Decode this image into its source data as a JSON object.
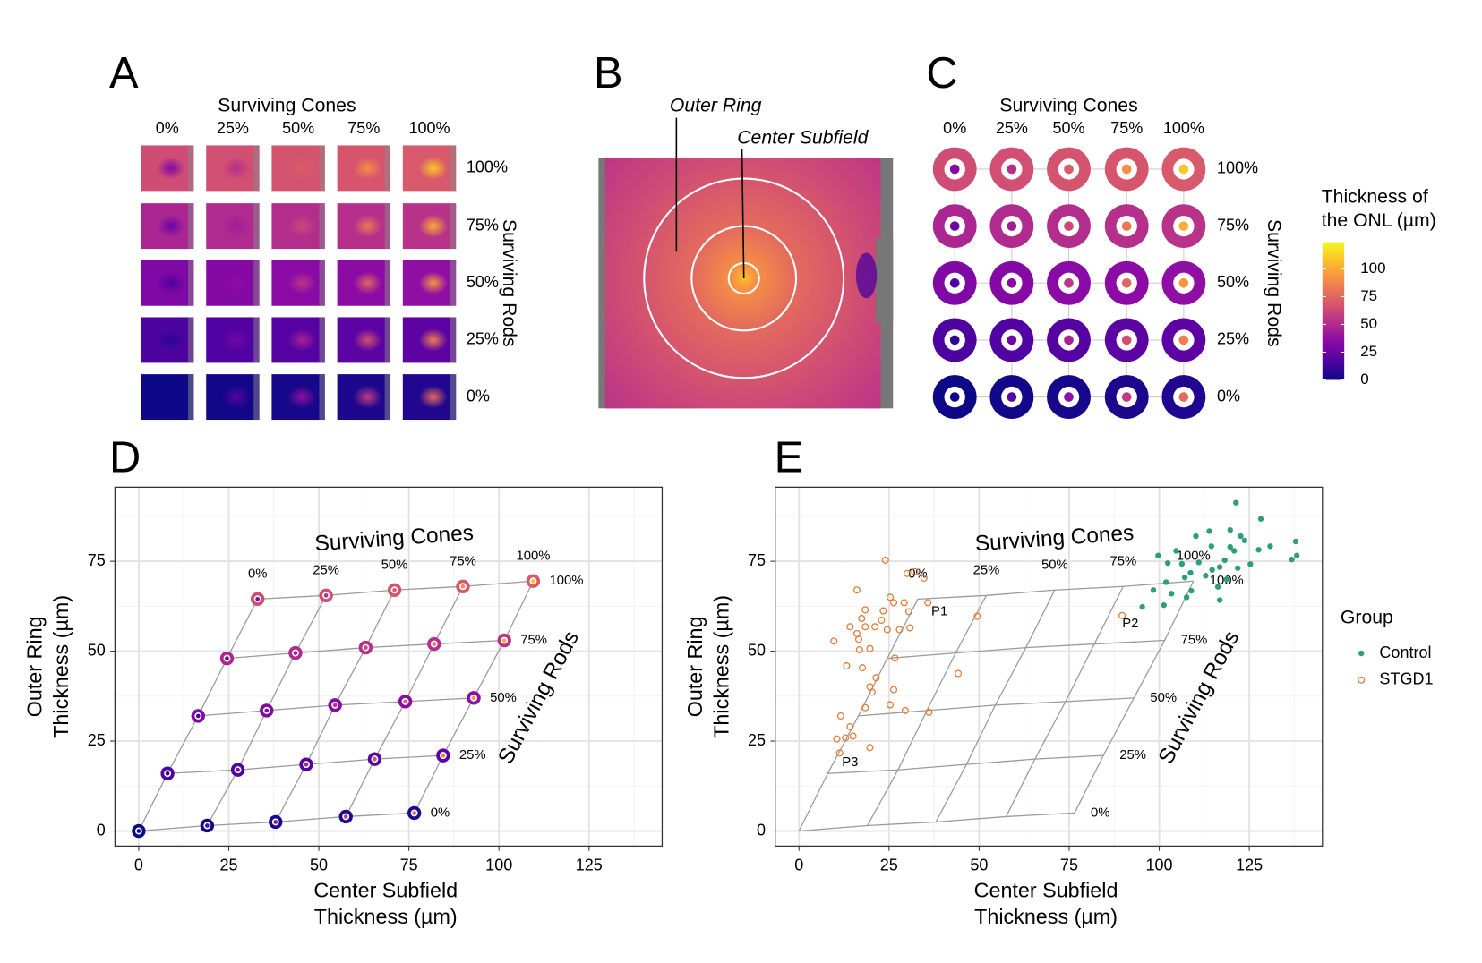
{
  "chart_data": [
    {
      "type": "thumbnail-grid",
      "panel": "A",
      "col_title": "Surviving Cones",
      "col_labels": [
        "0%",
        "25%",
        "50%",
        "75%",
        "100%"
      ],
      "row_title": "Surviving Rods",
      "row_labels": [
        "100%",
        "75%",
        "50%",
        "25%",
        "0%"
      ]
    },
    {
      "type": "heatmap",
      "panel": "B",
      "annotations": [
        "Outer Ring",
        "Center Subfield"
      ]
    },
    {
      "type": "ring-grid",
      "panel": "C",
      "col_title": "Surviving Cones",
      "col_labels": [
        "0%",
        "25%",
        "50%",
        "75%",
        "100%"
      ],
      "row_title": "Surviving Rods",
      "row_labels": [
        "100%",
        "75%",
        "50%",
        "25%",
        "0%"
      ],
      "colorbar": {
        "title": [
          "Thickness of",
          "the ONL (µm)"
        ],
        "lim": [
          0,
          124
        ],
        "ticks": [
          0,
          25,
          50,
          75,
          100
        ],
        "colormap": "plasma"
      }
    },
    {
      "type": "scatter-grid",
      "panel": "D",
      "cones_title": "Surviving Cones",
      "rods_title": "Surviving Rods",
      "cone_labels": [
        "0%",
        "25%",
        "50%",
        "75%",
        "100%"
      ],
      "series": [
        {
          "name": "0%",
          "x": [
            0,
            19,
            38,
            57.5,
            76.5
          ],
          "y": [
            0,
            1.5,
            2.5,
            4,
            5
          ]
        },
        {
          "name": "25%",
          "x": [
            8,
            27.5,
            46.5,
            65.5,
            84.5
          ],
          "y": [
            16,
            17,
            18.5,
            20,
            21
          ]
        },
        {
          "name": "50%",
          "x": [
            16.5,
            35.5,
            54.5,
            74,
            93
          ],
          "y": [
            32,
            33.5,
            35,
            36,
            37
          ]
        },
        {
          "name": "75%",
          "x": [
            24.5,
            43.5,
            63,
            82,
            101.5
          ],
          "y": [
            48,
            49.5,
            51,
            52,
            53
          ]
        },
        {
          "name": "100%",
          "x": [
            33,
            52,
            71,
            90,
            109.5
          ],
          "y": [
            64.5,
            65.5,
            67,
            68,
            69.5
          ]
        }
      ],
      "xlabel": [
        "Center Subfield",
        "Thickness (µm)"
      ],
      "ylabel": [
        "Outer Ring",
        "Thickness (µm)"
      ],
      "xlim": [
        -6.6,
        145.3
      ],
      "ylim": [
        -4.2,
        95.6
      ],
      "xticks": [
        0,
        25,
        50,
        75,
        100,
        125
      ],
      "yticks": [
        0,
        25,
        50,
        75
      ],
      "xminor": [
        12.5,
        37.5,
        62.5,
        87.5,
        112.5,
        137.5
      ],
      "yminor": [
        12.5,
        37.5,
        62.5,
        87.5
      ],
      "grid": true
    },
    {
      "type": "scatter",
      "panel": "E",
      "cones_title": "Surviving Cones",
      "rods_title": "Surviving Rods",
      "cone_labels": [
        "0%",
        "25%",
        "50%",
        "75%",
        "100%"
      ],
      "rod_labels": [
        "0%",
        "25%",
        "50%",
        "75%",
        "100%"
      ],
      "annotations": [
        "P1",
        "P2",
        "P3"
      ],
      "legend_title": "Group",
      "series": [
        {
          "name": "Control",
          "color": "#2e9e78",
          "marker": "filled",
          "x": [
            121.3,
            128.2,
            119.7,
            113.9,
            122.6,
            110.2,
            123.7,
            137.9,
            130.8,
            119.7,
            114.5,
            120.8,
            104.7,
            99.7,
            138.2,
            127.6,
            106.3,
            136.8,
            118.2,
            111,
            102.4,
            125.3,
            114.7,
            116.8,
            121.8,
            108.7,
            101.9,
            107.1,
            112.9,
            118.7,
            98.4,
            103.4,
            108.9,
            116.3,
            116.8,
            95.3,
            101.3,
            107.6
          ],
          "y": [
            91.3,
            86.8,
            83.7,
            83.4,
            82,
            82,
            80.8,
            80.5,
            79.2,
            79,
            79.2,
            77.9,
            77.9,
            76.6,
            76.6,
            78.2,
            74.3,
            75.5,
            75.3,
            74.7,
            74.5,
            74.2,
            72.6,
            73.4,
            73.1,
            71.8,
            69.2,
            70.5,
            71,
            70,
            67,
            66,
            66.8,
            67.9,
            64.2,
            62.3,
            62.8,
            65
          ]
        },
        {
          "name": "STGD1",
          "color": "#e07b39",
          "marker": "open",
          "x": [
            24,
            30,
            34.7,
            32.1,
            16.1,
            25.3,
            18.4,
            30.5,
            23.4,
            26.3,
            35.8,
            22.9,
            29.2,
            17.4,
            14.2,
            18.4,
            21.1,
            16.1,
            24.5,
            27.9,
            9.7,
            16.6,
            30.8,
            49.5,
            19.7,
            16.8,
            13.2,
            17.6,
            26.6,
            44.2,
            21.4,
            19.7,
            26.3,
            20.3,
            29.5,
            36.1,
            25.3,
            18.4,
            11.6,
            14.2,
            10.5,
            15,
            12.9,
            19.7,
            11.3,
            89.7
          ],
          "y": [
            75.3,
            71.6,
            70.3,
            72.1,
            67,
            65,
            61.5,
            61,
            61.2,
            63.5,
            63.5,
            58.6,
            63.5,
            59.1,
            56.8,
            56.8,
            56.8,
            54.9,
            56,
            56,
            52.8,
            53.3,
            56.5,
            59.7,
            50.7,
            50.4,
            45.9,
            45.4,
            48.1,
            43.8,
            42.6,
            40.1,
            39.3,
            38.6,
            33.5,
            33,
            35.1,
            34.3,
            32,
            29,
            25.6,
            26.4,
            25.9,
            23.2,
            21.7,
            59.9
          ]
        }
      ],
      "xlabel": [
        "Center Subfield",
        "Thickness (µm)"
      ],
      "ylabel": [
        "Outer Ring",
        "Thickness (µm)"
      ],
      "xlim": [
        -6.6,
        145.3
      ],
      "ylim": [
        -4.2,
        95.6
      ],
      "xticks": [
        0,
        25,
        50,
        75,
        100,
        125
      ],
      "yticks": [
        0,
        25,
        50,
        75
      ],
      "xminor": [
        12.5,
        37.5,
        62.5,
        87.5,
        112.5,
        137.5
      ],
      "yminor": [
        12.5,
        37.5,
        62.5,
        87.5
      ],
      "grid": true
    }
  ]
}
